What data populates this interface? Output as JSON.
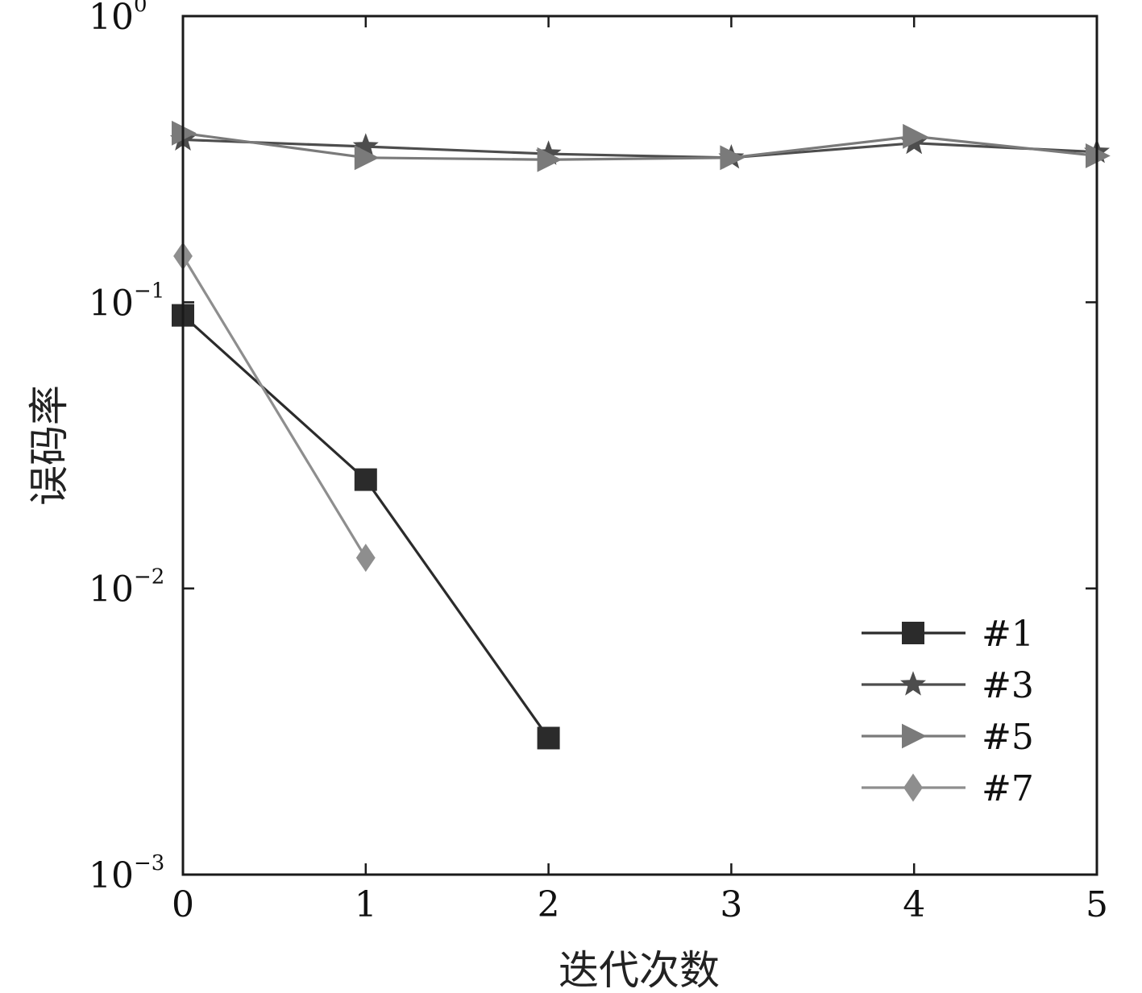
{
  "chart_data": {
    "type": "line",
    "xlabel": "迭代次数",
    "ylabel": "误码率",
    "x": [
      0,
      1,
      2,
      3,
      4,
      5
    ],
    "xlim": [
      0,
      5
    ],
    "ylim": [
      0.001,
      1
    ],
    "yscale": "log",
    "x_ticks": [
      "0",
      "1",
      "2",
      "3",
      "4",
      "5"
    ],
    "y_ticks": [
      {
        "base": "10",
        "exp": "0"
      },
      {
        "base": "10",
        "exp": "−1"
      },
      {
        "base": "10",
        "exp": "−2"
      },
      {
        "base": "10",
        "exp": "−3"
      }
    ],
    "grid": false,
    "legend_position": "bottom-right",
    "series": [
      {
        "name": "#1",
        "marker": "square",
        "color": "#2b2b2b",
        "x": [
          0,
          1,
          2
        ],
        "values": [
          0.09,
          0.024,
          0.003
        ]
      },
      {
        "name": "#3",
        "marker": "star",
        "color": "#4d4d4d",
        "x": [
          0,
          1,
          2,
          3,
          4,
          5
        ],
        "values": [
          0.37,
          0.35,
          0.33,
          0.32,
          0.36,
          0.335
        ]
      },
      {
        "name": "#5",
        "marker": "triangle-right",
        "color": "#7a7a7a",
        "x": [
          0,
          1,
          2,
          3,
          4,
          5
        ],
        "values": [
          0.39,
          0.32,
          0.315,
          0.32,
          0.38,
          0.325
        ]
      },
      {
        "name": "#7",
        "marker": "diamond",
        "color": "#8e8e8e",
        "x": [
          0,
          1
        ],
        "values": [
          0.145,
          0.0128
        ]
      }
    ]
  }
}
